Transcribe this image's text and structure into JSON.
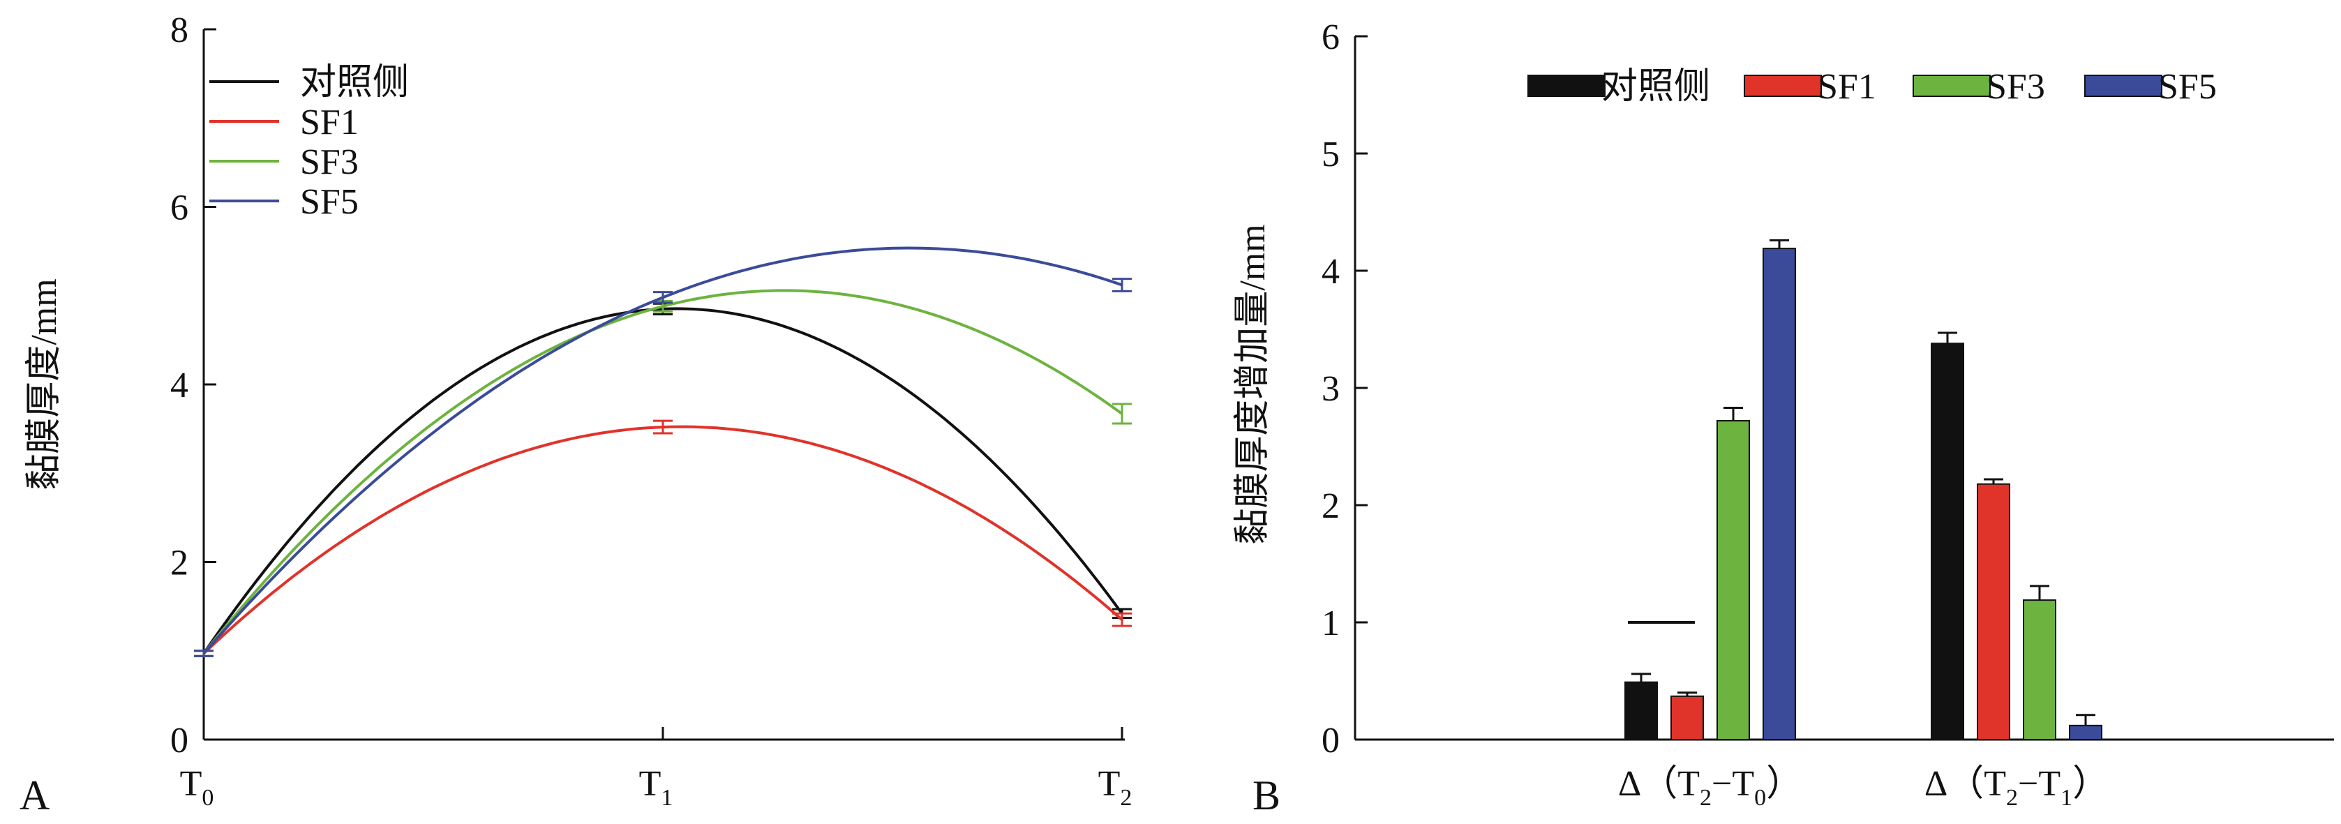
{
  "colors": {
    "control": "#111111",
    "SF1": "#e0332a",
    "SF3": "#6db33f",
    "SF5": "#3b4b9a",
    "axis": "#111111"
  },
  "chart_data": [
    {
      "panel": "A",
      "type": "line",
      "ylabel": "黏膜厚度/mm",
      "xlabel": "",
      "x_ticks": [
        {
          "main": "T",
          "sub": "0"
        },
        {
          "main": "T",
          "sub": "1"
        },
        {
          "main": "T",
          "sub": "2"
        }
      ],
      "ylim": [
        0,
        8
      ],
      "y_ticks": [
        0,
        2,
        4,
        6,
        8
      ],
      "legend_position": "top-left",
      "smooth": true,
      "series": [
        {
          "name": "对照侧",
          "color_key": "control",
          "values": [
            0.97,
            4.85,
            1.42
          ],
          "errors": [
            0.03,
            0.06,
            0.05
          ]
        },
        {
          "name": "SF1",
          "color_key": "SF1",
          "values": [
            0.97,
            3.52,
            1.35
          ],
          "errors": [
            0.03,
            0.07,
            0.07
          ]
        },
        {
          "name": "SF3",
          "color_key": "SF3",
          "values": [
            0.97,
            4.88,
            3.67
          ],
          "errors": [
            0.03,
            0.06,
            0.11
          ]
        },
        {
          "name": "SF5",
          "color_key": "SF5",
          "values": [
            0.97,
            4.98,
            5.12
          ],
          "errors": [
            0.03,
            0.06,
            0.07
          ]
        }
      ]
    },
    {
      "panel": "B",
      "type": "bar",
      "ylabel": "黏膜厚度增加量/mm",
      "xlabel": "",
      "categories": [
        {
          "pre": "Δ（T",
          "s1": "2",
          "mid": "−T",
          "s2": "0",
          "post": "）"
        },
        {
          "pre": "Δ（T",
          "s1": "2",
          "mid": "−T",
          "s2": "1",
          "post": "）"
        }
      ],
      "ylim": [
        0,
        6
      ],
      "y_ticks": [
        0,
        1,
        2,
        3,
        4,
        5,
        6
      ],
      "legend_position": "top-center",
      "series": [
        {
          "name": "对照侧",
          "color_key": "control",
          "values": [
            0.49,
            3.38
          ],
          "errors": [
            0.07,
            0.09
          ]
        },
        {
          "name": "SF1",
          "color_key": "SF1",
          "values": [
            0.37,
            2.18
          ],
          "errors": [
            0.03,
            0.04
          ]
        },
        {
          "name": "SF3",
          "color_key": "SF3",
          "values": [
            2.72,
            1.19
          ],
          "errors": [
            0.11,
            0.12
          ]
        },
        {
          "name": "SF5",
          "color_key": "SF5",
          "values": [
            4.19,
            0.12
          ],
          "errors": [
            0.07,
            0.09
          ]
        }
      ],
      "annotations": [
        {
          "kind": "horizontal-dash",
          "category_index": 0,
          "value": 1.0
        }
      ]
    }
  ]
}
